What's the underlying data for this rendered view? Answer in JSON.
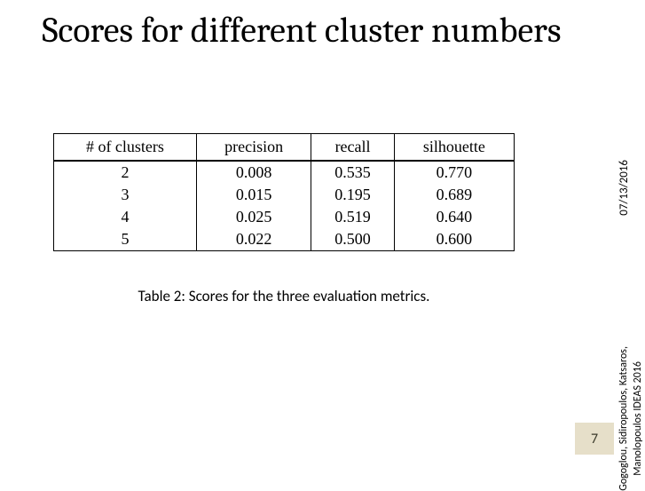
{
  "title": "Scores for different cluster numbers",
  "table": {
    "columns": [
      "# of clusters",
      "precision",
      "recall",
      "silhouette"
    ],
    "rows": [
      [
        "2",
        "0.008",
        "0.535",
        "0.770"
      ],
      [
        "3",
        "0.015",
        "0.195",
        "0.689"
      ],
      [
        "4",
        "0.025",
        "0.519",
        "0.640"
      ],
      [
        "5",
        "0.022",
        "0.500",
        "0.600"
      ]
    ],
    "header_fontsize": 18,
    "cell_fontsize": 18,
    "border_color": "#000000",
    "background_color": "#ffffff"
  },
  "caption": "Table 2: Scores for the three evaluation metrics.",
  "sidebar": {
    "date": "07/13/2016",
    "authors_line1": "Gogoglou, Sidiropoulos, Katsaros,",
    "authors_line2": "Manolopoulos   IDEAS 2016"
  },
  "page_number": "7",
  "colors": {
    "background": "#ffffff",
    "text": "#000000",
    "badge_bg": "#e6dfc9",
    "badge_text": "#3a3a2a"
  }
}
